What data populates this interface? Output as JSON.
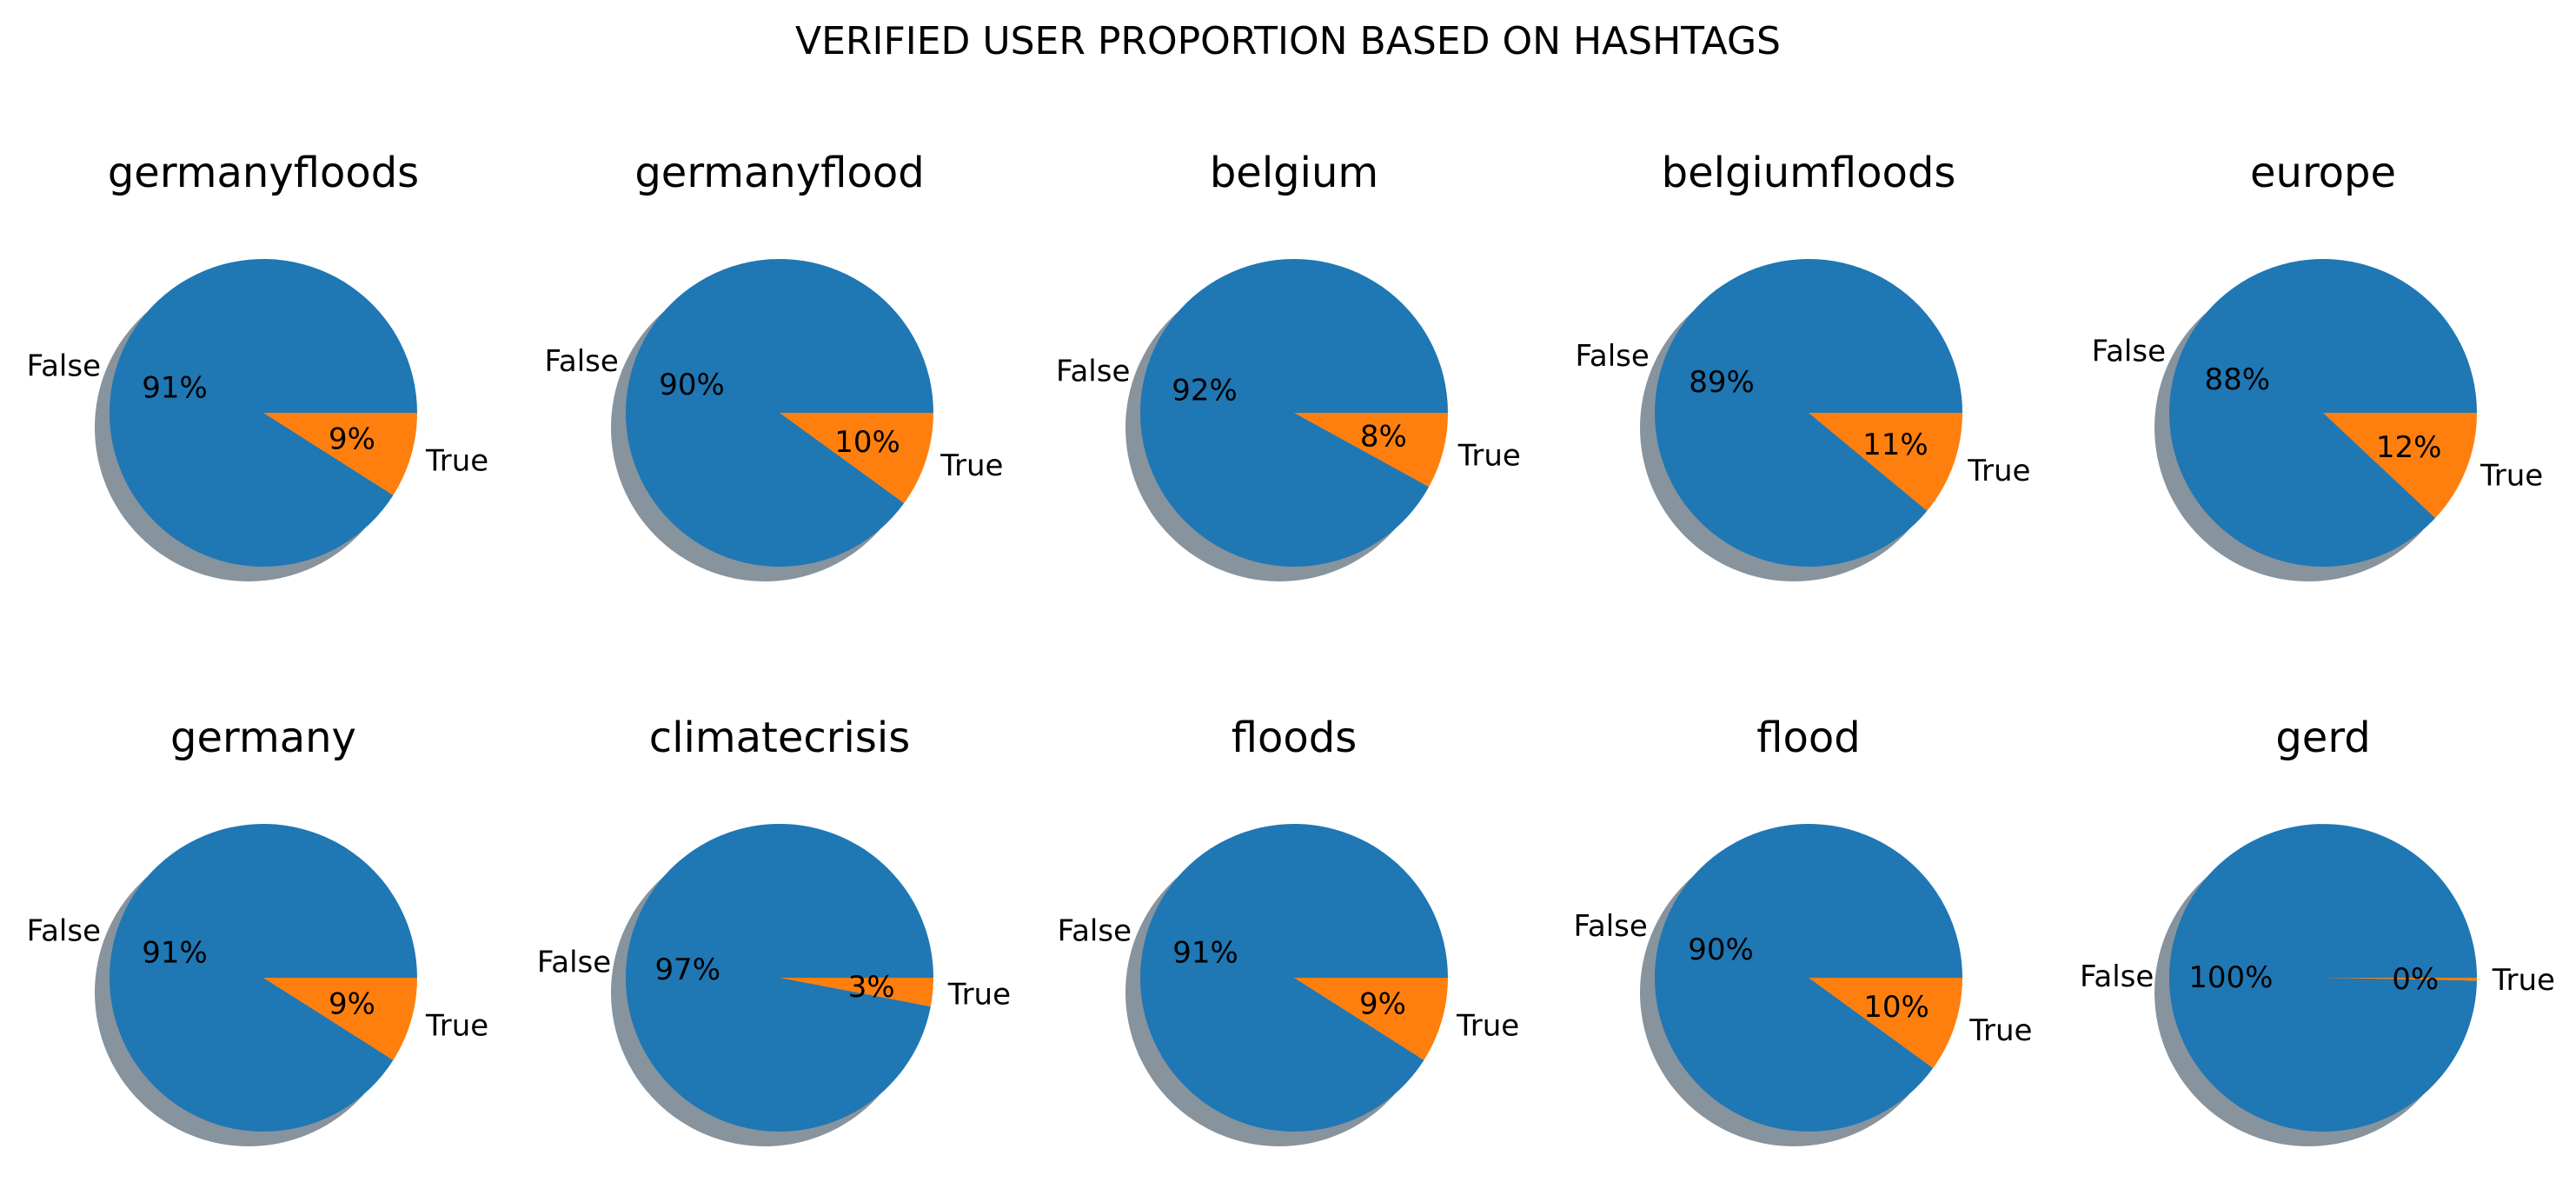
{
  "title": "VERIFIED USER PROPORTION BASED ON HASHTAGS",
  "colors": {
    "False": "#1f77b4",
    "True": "#ff7f0e",
    "shadow": "#5f6f7c"
  },
  "chart_data": [
    {
      "type": "pie",
      "title": "germanyfloods",
      "labels": [
        "False",
        "True"
      ],
      "values": [
        91,
        9
      ],
      "autopct": [
        "91%",
        "9%"
      ],
      "shadow": true
    },
    {
      "type": "pie",
      "title": "germanyflood",
      "labels": [
        "False",
        "True"
      ],
      "values": [
        90,
        10
      ],
      "autopct": [
        "90%",
        "10%"
      ],
      "shadow": true
    },
    {
      "type": "pie",
      "title": "belgium",
      "labels": [
        "False",
        "True"
      ],
      "values": [
        92,
        8
      ],
      "autopct": [
        "92%",
        "8%"
      ],
      "shadow": true
    },
    {
      "type": "pie",
      "title": "belgiumfloods",
      "labels": [
        "False",
        "True"
      ],
      "values": [
        89,
        11
      ],
      "autopct": [
        "89%",
        "11%"
      ],
      "shadow": true
    },
    {
      "type": "pie",
      "title": "europe",
      "labels": [
        "False",
        "True"
      ],
      "values": [
        88,
        12
      ],
      "autopct": [
        "88%",
        "12%"
      ],
      "shadow": true
    },
    {
      "type": "pie",
      "title": "germany",
      "labels": [
        "False",
        "True"
      ],
      "values": [
        91,
        9
      ],
      "autopct": [
        "91%",
        "9%"
      ],
      "shadow": true
    },
    {
      "type": "pie",
      "title": "climatecrisis",
      "labels": [
        "False",
        "True"
      ],
      "values": [
        97,
        3
      ],
      "autopct": [
        "97%",
        "3%"
      ],
      "shadow": true
    },
    {
      "type": "pie",
      "title": "floods",
      "labels": [
        "False",
        "True"
      ],
      "values": [
        91,
        9
      ],
      "autopct": [
        "91%",
        "9%"
      ],
      "shadow": true
    },
    {
      "type": "pie",
      "title": "flood",
      "labels": [
        "False",
        "True"
      ],
      "values": [
        90,
        10
      ],
      "autopct": [
        "90%",
        "10%"
      ],
      "shadow": true
    },
    {
      "type": "pie",
      "title": "gerd",
      "labels": [
        "False",
        "True"
      ],
      "values": [
        99.7,
        0.3
      ],
      "autopct": [
        "100%",
        "0%"
      ],
      "shadow": true
    }
  ]
}
